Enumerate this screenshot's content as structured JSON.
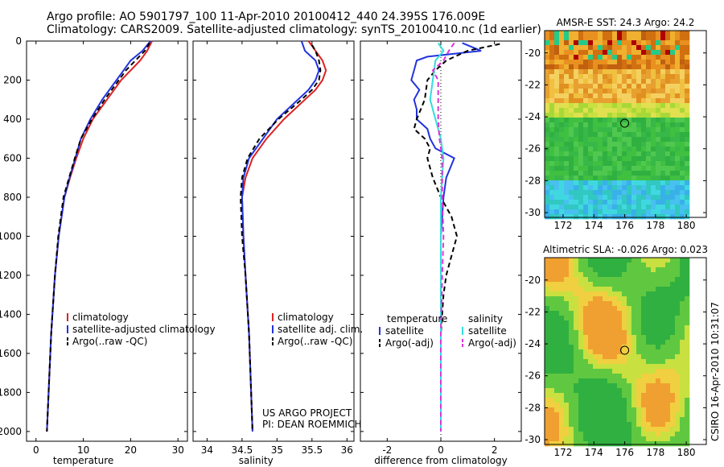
{
  "titles": {
    "line1": "Argo profile: AO 5901797_100 11-Apr-2010 20100412_440 24.395S 176.009E",
    "line2": "Climatology: CARS2009. Satellite-adjusted climatology: synTS_20100410.nc (1d earlier)"
  },
  "footer": {
    "project": "US ARGO PROJECT",
    "pi": "PI: DEAN ROEMMICH",
    "stamp": "CSIRO 16-Apr-2010 10:31:07"
  },
  "colors": {
    "climatology": "#dd2222",
    "satellite": "#2233dd",
    "argo": "#000000",
    "sal_satellite": "#33dddd",
    "sal_argo": "#dd33dd"
  },
  "chart_data": [
    {
      "type": "line",
      "xlabel": "temperature",
      "ylim": [
        0,
        2050
      ],
      "xlim": [
        -2,
        32
      ],
      "xticks": [
        0,
        10,
        20,
        30
      ],
      "yticks": [
        0,
        200,
        400,
        600,
        800,
        1000,
        1200,
        1400,
        1600,
        1800,
        2000
      ],
      "legend": [
        "climatology",
        "satellite-adjusted climatology",
        "Argo(..raw -QC)"
      ],
      "series": [
        {
          "name": "climatology",
          "depth": [
            0,
            50,
            100,
            150,
            200,
            300,
            400,
            500,
            600,
            700,
            800,
            1000,
            1200,
            1500,
            2000
          ],
          "values": [
            24.5,
            23.5,
            22,
            20,
            18,
            15,
            12,
            10,
            8.5,
            7.2,
            6,
            4.8,
            4,
            3.2,
            2.3
          ]
        },
        {
          "name": "satellite-adjusted climatology",
          "depth": [
            0,
            50,
            100,
            150,
            200,
            300,
            400,
            500,
            600,
            700,
            800,
            1000,
            1200,
            1500,
            2000
          ],
          "values": [
            24.2,
            22.5,
            20,
            18.5,
            17,
            14,
            11.5,
            9.5,
            8.3,
            7.1,
            6,
            4.8,
            4,
            3.2,
            2.3
          ]
        },
        {
          "name": "Argo(..raw -QC)",
          "depth": [
            10,
            50,
            100,
            150,
            200,
            300,
            400,
            500,
            600,
            700,
            800,
            1000,
            1200,
            1500,
            2000
          ],
          "values": [
            24,
            23,
            21,
            19,
            17.5,
            14.5,
            11.8,
            9.5,
            8.2,
            7,
            5.8,
            4.7,
            4,
            3.2,
            2.3
          ]
        }
      ]
    },
    {
      "type": "line",
      "xlabel": "salinity",
      "ylim": [
        0,
        2050
      ],
      "xlim": [
        33.8,
        36.1
      ],
      "xticks": [
        34,
        34.5,
        35,
        35.5,
        36
      ],
      "legend": [
        "climatology",
        "satellite adj. clim.",
        "Argo(..raw -QC)"
      ],
      "series": [
        {
          "name": "climatology",
          "depth": [
            0,
            50,
            100,
            150,
            200,
            250,
            300,
            400,
            500,
            600,
            700,
            800,
            1000,
            1200,
            1500,
            2000
          ],
          "values": [
            35.45,
            35.55,
            35.65,
            35.7,
            35.65,
            35.55,
            35.4,
            35.1,
            34.85,
            34.65,
            34.55,
            34.5,
            34.52,
            34.55,
            34.6,
            34.65
          ]
        },
        {
          "name": "satellite adj. clim.",
          "depth": [
            0,
            50,
            100,
            150,
            200,
            250,
            300,
            400,
            500,
            600,
            700,
            800,
            1000,
            1200,
            1500,
            2000
          ],
          "values": [
            35.35,
            35.4,
            35.55,
            35.6,
            35.55,
            35.45,
            35.3,
            35.0,
            34.8,
            34.6,
            34.52,
            34.5,
            34.52,
            34.55,
            34.6,
            34.65
          ]
        },
        {
          "name": "Argo(..raw -QC)",
          "depth": [
            20,
            50,
            100,
            150,
            200,
            250,
            300,
            400,
            500,
            600,
            700,
            800,
            1000,
            1200,
            1500,
            2000
          ],
          "values": [
            35.5,
            35.55,
            35.6,
            35.62,
            35.6,
            35.5,
            35.35,
            35.02,
            34.75,
            34.58,
            34.5,
            34.48,
            34.5,
            34.55,
            34.6,
            34.65
          ]
        }
      ]
    },
    {
      "type": "line",
      "xlabel": "difference from climatology",
      "ylim": [
        0,
        2050
      ],
      "xlim": [
        -3,
        3
      ],
      "xticks": [
        -2,
        0,
        2
      ],
      "legend_headers": [
        "temperature",
        "salinity"
      ],
      "legend": [
        "satellite",
        "Argo(-adj)",
        "satellite",
        "Argo(-adj)"
      ],
      "series": [
        {
          "name": "satellite",
          "depth": [
            10,
            50,
            80,
            100,
            150,
            200,
            250,
            300,
            350,
            400,
            450,
            500,
            550,
            600,
            700,
            800,
            1000,
            1200,
            1500,
            2000
          ],
          "values": [
            0.8,
            1.5,
            -0.5,
            -0.9,
            -1.0,
            -1.1,
            -0.8,
            -1.0,
            -0.9,
            -0.9,
            -0.5,
            -0.4,
            -0.2,
            0.5,
            0.2,
            0.1,
            0,
            0,
            0,
            0
          ]
        },
        {
          "name": "Argo(-adj)",
          "depth": [
            15,
            50,
            100,
            150,
            200,
            300,
            400,
            450,
            500,
            550,
            600,
            700,
            800,
            900,
            1000,
            1100,
            1200,
            1300,
            1500,
            2000
          ],
          "values": [
            2.2,
            1.0,
            0.2,
            -0.2,
            -0.5,
            -0.6,
            -0.9,
            -1.0,
            -0.6,
            -0.4,
            -0.5,
            -0.3,
            0,
            0.4,
            0.6,
            0.4,
            0.2,
            0.1,
            0,
            0
          ]
        },
        {
          "name": "satellite",
          "depth": [
            10,
            50,
            100,
            200,
            300,
            400,
            500,
            600,
            800,
            1000,
            1500,
            2000
          ],
          "values": [
            -0.1,
            0.1,
            -0.2,
            -0.3,
            -0.4,
            -0.2,
            0,
            0.1,
            0,
            0,
            0,
            0
          ]
        },
        {
          "name": "Argo(-adj)",
          "depth": [
            10,
            50,
            100,
            150,
            200,
            300,
            400,
            500,
            600,
            800,
            1000,
            1200,
            1500,
            2000
          ],
          "values": [
            0.5,
            0.3,
            0.1,
            -0.3,
            -0.1,
            -0.1,
            -0.1,
            -0.05,
            0.05,
            0.05,
            0.1,
            0.05,
            0,
            0
          ]
        }
      ]
    },
    {
      "type": "heatmap",
      "title": "AMSR-E SST: 24.3 Argo: 24.2",
      "xlim": [
        170.8,
        181.3
      ],
      "ylim": [
        -30.3,
        -18.6
      ],
      "xticks": [
        172,
        174,
        176,
        178,
        180
      ],
      "yticks": [
        -20,
        -22,
        -24,
        -26,
        -28,
        -30
      ],
      "marker": [
        176.0,
        -24.4
      ]
    },
    {
      "type": "heatmap",
      "title": "Altimetric SLA: -0.026 Argo: 0.023",
      "xlim": [
        170.8,
        181.3
      ],
      "ylim": [
        -30.3,
        -18.6
      ],
      "xticks": [
        172,
        174,
        176,
        178,
        180
      ],
      "yticks": [
        -20,
        -22,
        -24,
        -26,
        -28,
        -30
      ],
      "marker": [
        176.0,
        -24.4
      ]
    }
  ]
}
